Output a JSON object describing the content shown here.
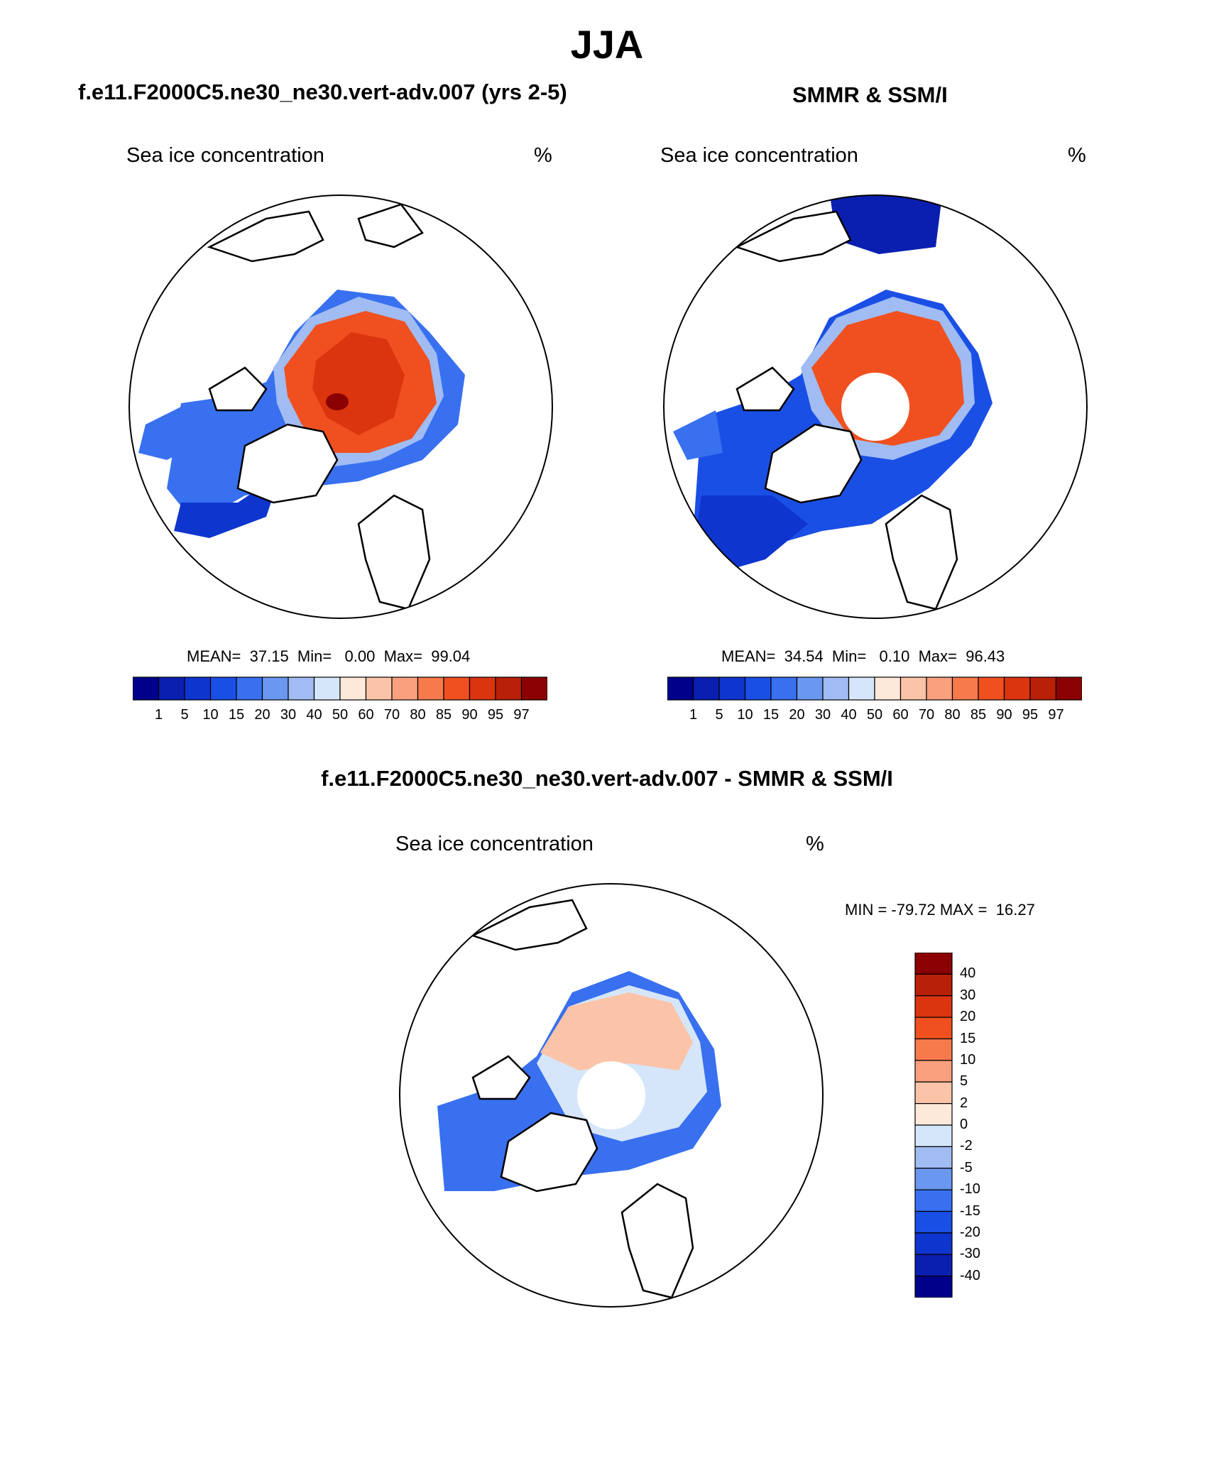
{
  "title": "JJA",
  "panels": [
    {
      "title": "f.e11.F2000C5.ne30_ne30.vert-adv.007 (yrs 2-5)",
      "variable": "Sea ice concentration",
      "units": "%",
      "stats": "MEAN=  37.15  Min=   0.00  Max=  99.04",
      "colorbar_labels": [
        "1",
        "5",
        "10",
        "15",
        "20",
        "30",
        "40",
        "50",
        "60",
        "70",
        "80",
        "85",
        "90",
        "95",
        "97"
      ]
    },
    {
      "title": "SMMR & SSM/I",
      "variable": "Sea ice concentration",
      "units": "%",
      "stats": "MEAN=  34.54  Min=   0.10  Max=  96.43",
      "colorbar_labels": [
        "1",
        "5",
        "10",
        "15",
        "20",
        "30",
        "40",
        "50",
        "60",
        "70",
        "80",
        "85",
        "90",
        "95",
        "97"
      ]
    },
    {
      "title": "f.e11.F2000C5.ne30_ne30.vert-adv.007 - SMMR & SSM/I",
      "variable": "Sea ice concentration",
      "units": "%",
      "stats": "MIN = -79.72 MAX =  16.27",
      "colorbar_labels": [
        "40",
        "30",
        "20",
        "15",
        "10",
        "5",
        "2",
        "0",
        "-2",
        "-5",
        "-10",
        "-15",
        "-20",
        "-30",
        "-40"
      ]
    }
  ],
  "colors": {
    "conc_scale": [
      "#00008b",
      "#0a1fb0",
      "#0f35cf",
      "#1a4fe6",
      "#3870f0",
      "#6a98f0",
      "#a0bcf2",
      "#d6e6fa",
      "#fde9da",
      "#fbc4a8",
      "#f9a07e",
      "#f67a4c",
      "#f05020",
      "#db3510",
      "#b82008",
      "#8b0000"
    ],
    "diff_scale": [
      "#8b0000",
      "#b82008",
      "#db3510",
      "#f05020",
      "#f67a4c",
      "#f9a07e",
      "#fbc4a8",
      "#fde9da",
      "#d6e6fa",
      "#a0bcf2",
      "#6a98f0",
      "#3870f0",
      "#1a4fe6",
      "#0f35cf",
      "#0a1fb0",
      "#00008b"
    ]
  }
}
